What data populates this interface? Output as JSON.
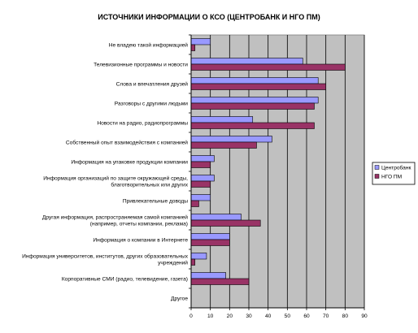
{
  "chart_data": {
    "type": "bar",
    "orientation": "horizontal",
    "title": "ИСТОЧНИКИ ИНФОРМАЦИИ О КСО (ЦЕНТРОБАНК И НГО ПМ)",
    "categories": [
      [
        "Не владею такой информацией"
      ],
      [
        "Телевизионные программы и новости"
      ],
      [
        "Слова и впечатления друзей"
      ],
      [
        "Разговоры с другими людьми"
      ],
      [
        "Новости на радио, радиопрограммы"
      ],
      [
        "Собственный опыт взаимодействия с компанией"
      ],
      [
        "Информация на упаковке продукции компании"
      ],
      [
        "Информация организаций по защите окружающей среды,",
        "благотворительных или других"
      ],
      [
        "Привлекательные доводы"
      ],
      [
        "Другая информация, распространяемая самой компанией",
        "(например, отчеты компании, реклама)"
      ],
      [
        "Информация о компании в Интернете"
      ],
      [
        "Информация университетов, институтов, других образовательных",
        "учреждений"
      ],
      [
        "Корпоративные СМИ (радио, телевидение, газета)"
      ],
      [
        "Другое"
      ]
    ],
    "series": [
      {
        "name": "Центробанк",
        "color": "#9999ff",
        "values": [
          10,
          58,
          66,
          66,
          32,
          42,
          12,
          12,
          10,
          26,
          20,
          8,
          18,
          0
        ]
      },
      {
        "name": "НГО ПМ",
        "color": "#993366",
        "values": [
          2,
          80,
          70,
          64,
          64,
          34,
          10,
          10,
          4,
          36,
          20,
          2,
          30,
          0
        ]
      }
    ],
    "xlim": [
      0,
      90
    ],
    "xticks": [
      0,
      10,
      20,
      30,
      40,
      50,
      60,
      70,
      80,
      90
    ],
    "grid": true,
    "plot_background": "#c0c0c0",
    "legend_position": "right"
  }
}
